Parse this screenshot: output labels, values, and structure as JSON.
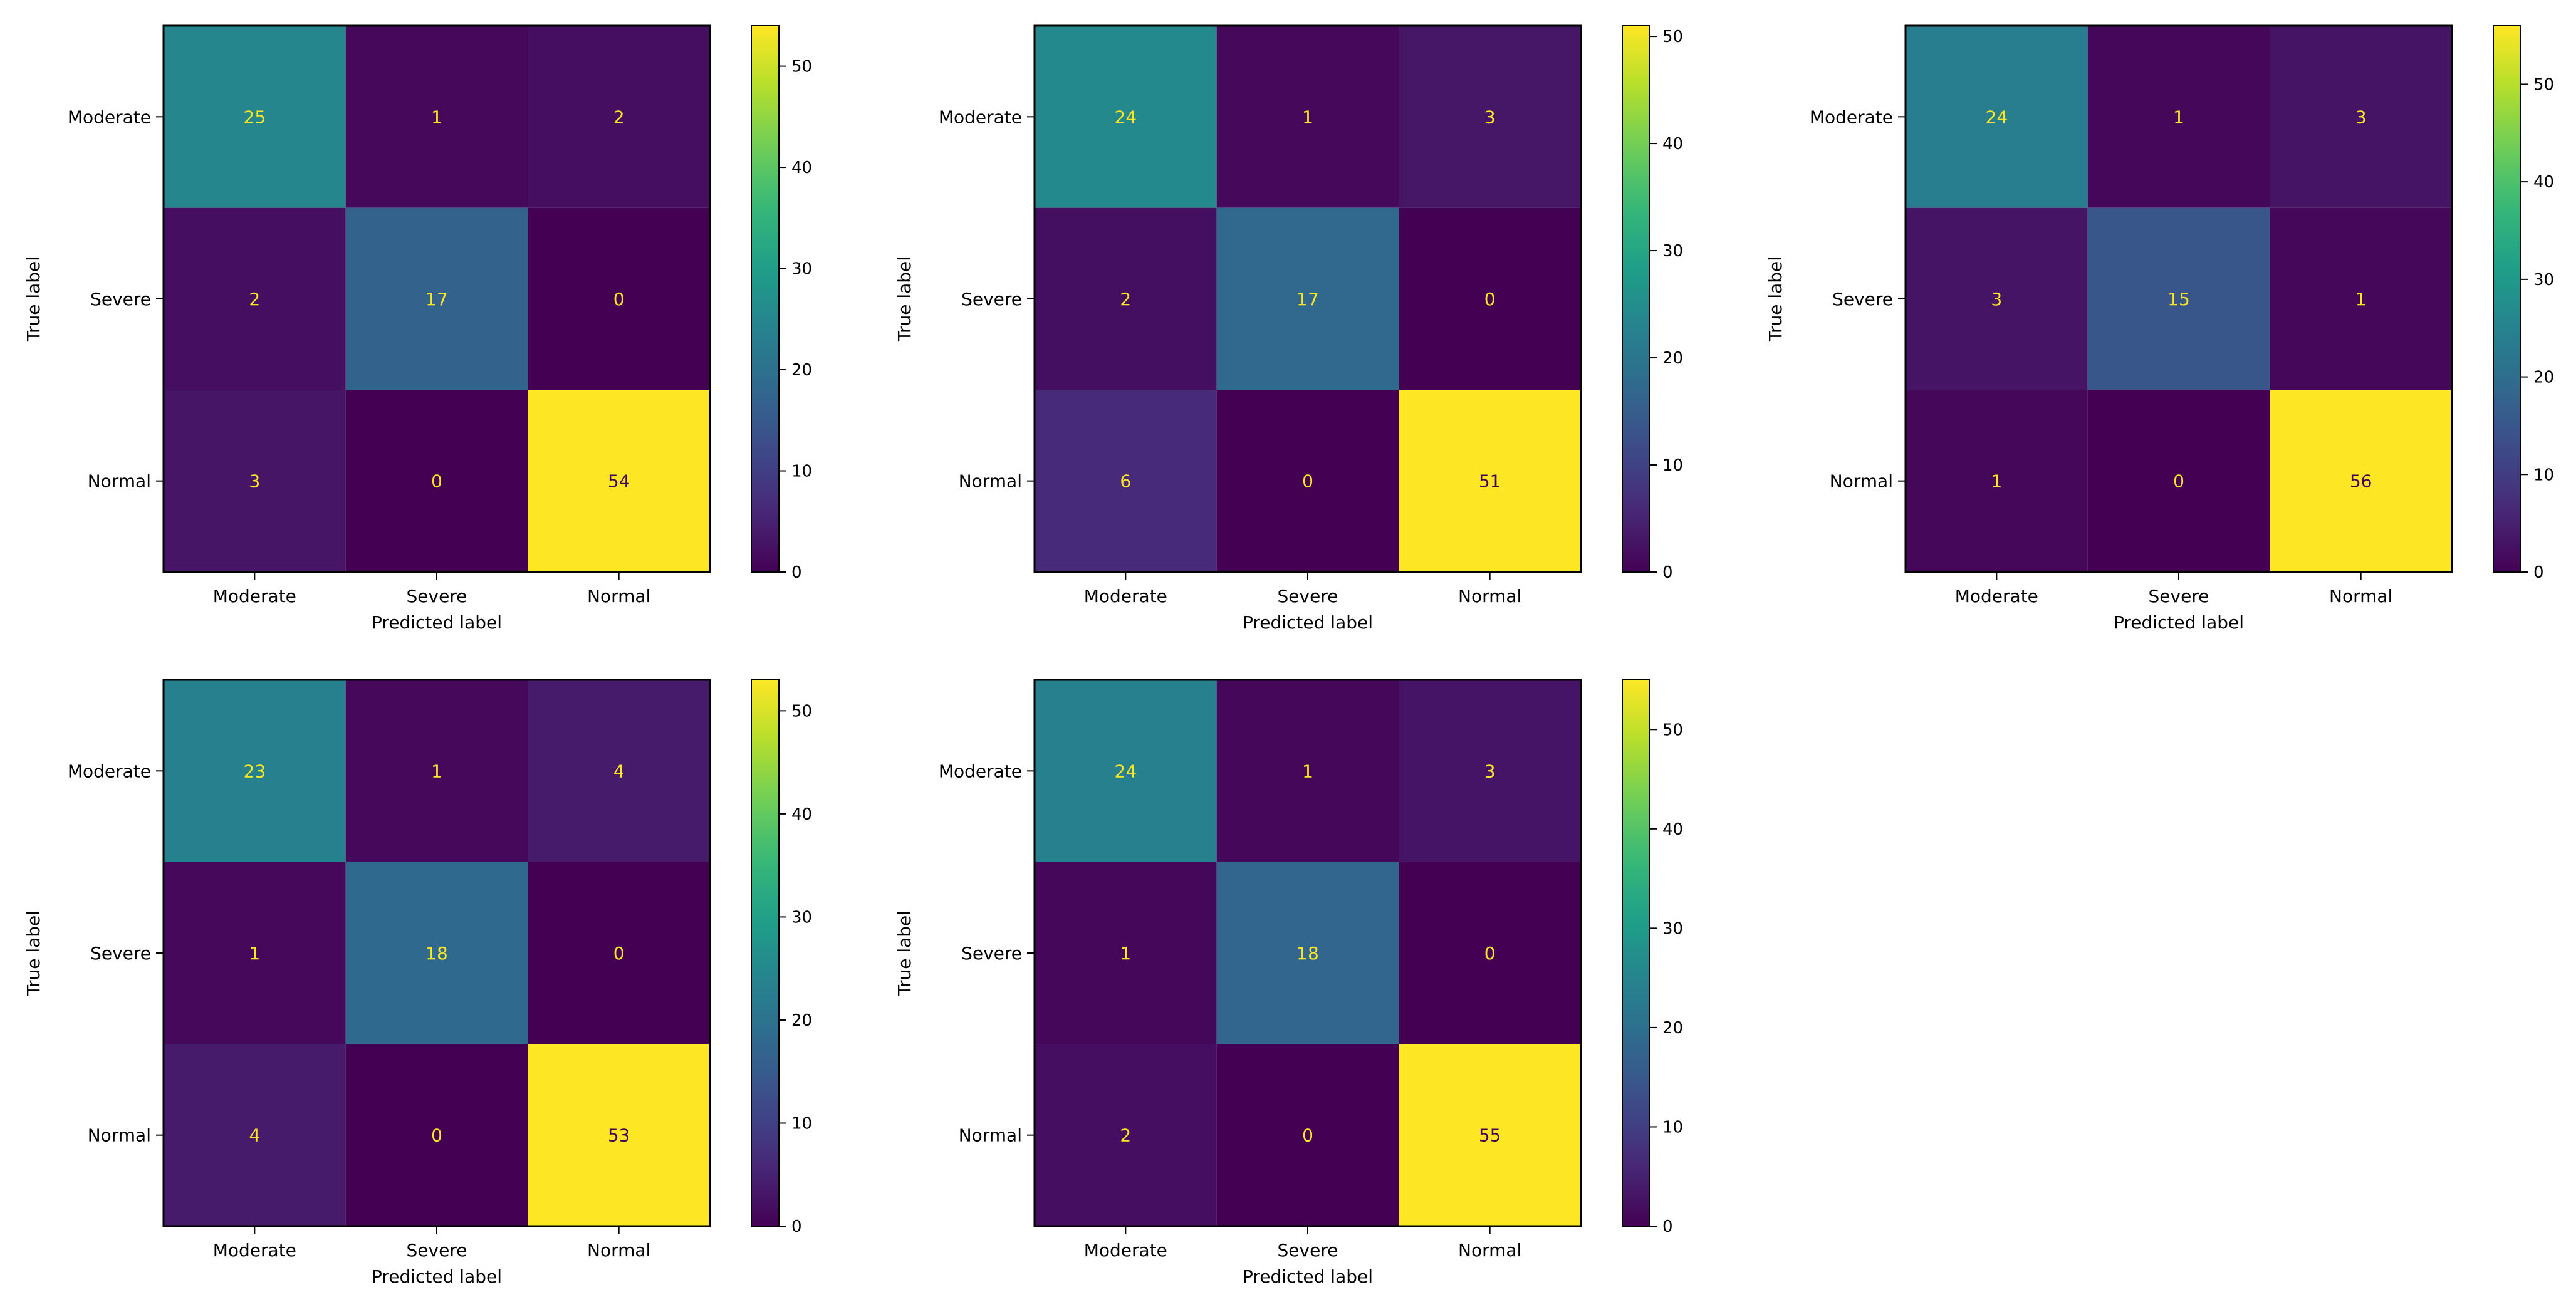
{
  "chart_data": [
    {
      "type": "heatmap",
      "title": "",
      "xlabel": "Predicted label",
      "ylabel": "True label",
      "x_categories": [
        "Moderate",
        "Severe",
        "Normal"
      ],
      "y_categories": [
        "Moderate",
        "Severe",
        "Normal"
      ],
      "values": [
        [
          25,
          1,
          2
        ],
        [
          2,
          17,
          0
        ],
        [
          3,
          0,
          54
        ]
      ],
      "colorbar": {
        "colormap": "viridis",
        "min": 0,
        "max": 54,
        "ticks": [
          0,
          10,
          20,
          30,
          40,
          50
        ]
      }
    },
    {
      "type": "heatmap",
      "title": "",
      "xlabel": "Predicted label",
      "ylabel": "True label",
      "x_categories": [
        "Moderate",
        "Severe",
        "Normal"
      ],
      "y_categories": [
        "Moderate",
        "Severe",
        "Normal"
      ],
      "values": [
        [
          24,
          1,
          3
        ],
        [
          2,
          17,
          0
        ],
        [
          6,
          0,
          51
        ]
      ],
      "colorbar": {
        "colormap": "viridis",
        "min": 0,
        "max": 51,
        "ticks": [
          0,
          10,
          20,
          30,
          40,
          50
        ]
      }
    },
    {
      "type": "heatmap",
      "title": "",
      "xlabel": "Predicted label",
      "ylabel": "True label",
      "x_categories": [
        "Moderate",
        "Severe",
        "Normal"
      ],
      "y_categories": [
        "Moderate",
        "Severe",
        "Normal"
      ],
      "values": [
        [
          24,
          1,
          3
        ],
        [
          3,
          15,
          1
        ],
        [
          1,
          0,
          56
        ]
      ],
      "colorbar": {
        "colormap": "viridis",
        "min": 0,
        "max": 56,
        "ticks": [
          0,
          10,
          20,
          30,
          40,
          50
        ]
      }
    },
    {
      "type": "heatmap",
      "title": "",
      "xlabel": "Predicted label",
      "ylabel": "True label",
      "x_categories": [
        "Moderate",
        "Severe",
        "Normal"
      ],
      "y_categories": [
        "Moderate",
        "Severe",
        "Normal"
      ],
      "values": [
        [
          23,
          1,
          4
        ],
        [
          1,
          18,
          0
        ],
        [
          4,
          0,
          53
        ]
      ],
      "colorbar": {
        "colormap": "viridis",
        "min": 0,
        "max": 53,
        "ticks": [
          0,
          10,
          20,
          30,
          40,
          50
        ]
      }
    },
    {
      "type": "heatmap",
      "title": "",
      "xlabel": "Predicted label",
      "ylabel": "True label",
      "x_categories": [
        "Moderate",
        "Severe",
        "Normal"
      ],
      "y_categories": [
        "Moderate",
        "Severe",
        "Normal"
      ],
      "values": [
        [
          24,
          1,
          3
        ],
        [
          1,
          18,
          0
        ],
        [
          2,
          0,
          55
        ]
      ],
      "colorbar": {
        "colormap": "viridis",
        "min": 0,
        "max": 55,
        "ticks": [
          0,
          10,
          20,
          30,
          40,
          50
        ]
      }
    }
  ]
}
